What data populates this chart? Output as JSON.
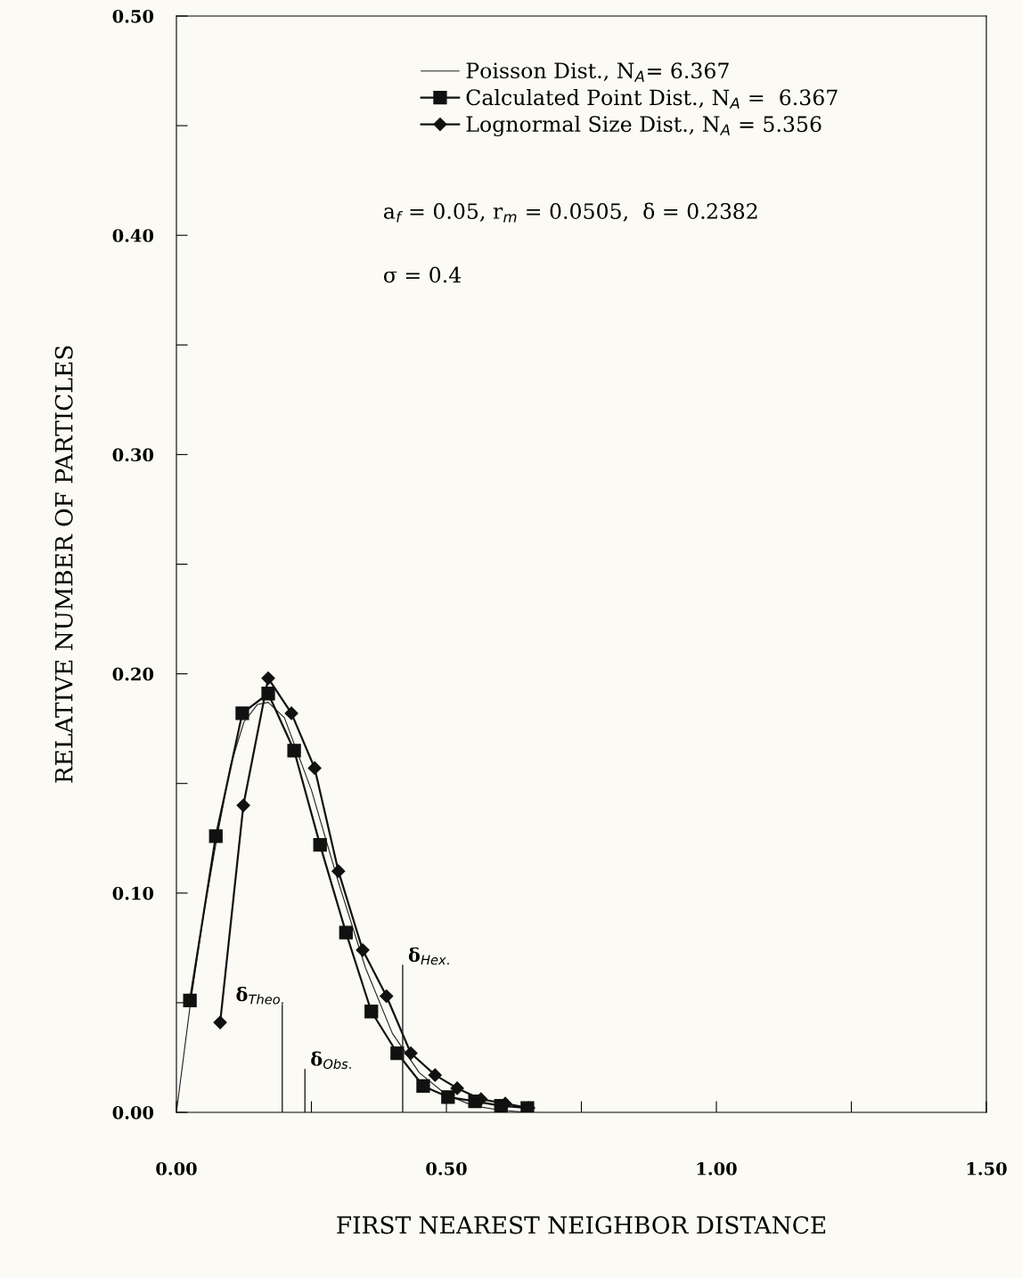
{
  "chart_data": {
    "type": "line",
    "xlabel": "FIRST NEAREST NEIGHBOR DISTANCE",
    "ylabel": "RELATIVE NUMBER OF PARTICLES",
    "series": [
      {
        "name": "Poisson Dist., N$_{A}$= 6.367",
        "color": "#222222",
        "marker": "none",
        "x": [
          0,
          0.025,
          0.05,
          0.075,
          0.1,
          0.125,
          0.15,
          0.17,
          0.2,
          0.25,
          0.3,
          0.35,
          0.4,
          0.45,
          0.5,
          0.55,
          0.6,
          0.65
        ],
        "values": [
          0,
          0.048,
          0.09,
          0.125,
          0.158,
          0.178,
          0.186,
          0.187,
          0.18,
          0.147,
          0.105,
          0.066,
          0.036,
          0.018,
          0.008,
          0.003,
          0.001,
          0.0
        ]
      },
      {
        "name": "Calculated Point Dist., N$_{A}$ =  6.367",
        "color": "#111111",
        "marker": "square",
        "x": [
          0.025,
          0.073,
          0.122,
          0.17,
          0.218,
          0.266,
          0.314,
          0.361,
          0.409,
          0.457,
          0.503,
          0.553,
          0.601,
          0.65
        ],
        "values": [
          0.051,
          0.126,
          0.182,
          0.191,
          0.165,
          0.122,
          0.082,
          0.046,
          0.027,
          0.012,
          0.007,
          0.005,
          0.003,
          0.002
        ]
      },
      {
        "name": "Lognormal Size Dist., N$_{A}$ = 5.356",
        "color": "#111111",
        "marker": "diamond",
        "x": [
          0.081,
          0.124,
          0.17,
          0.213,
          0.256,
          0.3,
          0.345,
          0.389,
          0.434,
          0.479,
          0.52,
          0.564,
          0.609,
          0.652
        ],
        "values": [
          0.041,
          0.14,
          0.198,
          0.182,
          0.157,
          0.11,
          0.074,
          0.053,
          0.027,
          0.017,
          0.011,
          0.006,
          0.004,
          0.002
        ]
      }
    ],
    "annotations": [
      "a$_{f}$ = 0.05, r$_{m}$ = 0.0505,  δ = 0.2382",
      "σ = 0.4"
    ],
    "ref_lines": [
      {
        "axis": "x",
        "value": 0.196,
        "label": "δ$_{Theo.}$"
      },
      {
        "axis": "x",
        "value": 0.238,
        "label": "δ$_{Obs.}$"
      },
      {
        "axis": "x",
        "value": 0.419,
        "label": "δ$_{Hex.}$"
      }
    ],
    "xlim": [
      0,
      1.5
    ],
    "ylim": [
      0,
      0.5
    ],
    "xticks": [
      {
        "value": 0,
        "label": "0.00"
      },
      {
        "value": 0.25,
        "label": null
      },
      {
        "value": 0.5,
        "label": "0.50"
      },
      {
        "value": 0.75,
        "label": null
      },
      {
        "value": 1.0,
        "label": "1.00"
      },
      {
        "value": 1.25,
        "label": null
      },
      {
        "value": 1.5,
        "label": "1.50"
      }
    ],
    "yticks": [
      {
        "value": 0,
        "label": "0.00"
      },
      {
        "value": 0.05,
        "label": null
      },
      {
        "value": 0.1,
        "label": "0.10"
      },
      {
        "value": 0.15,
        "label": null
      },
      {
        "value": 0.2,
        "label": "0.20"
      },
      {
        "value": 0.25,
        "label": null
      },
      {
        "value": 0.3,
        "label": "0.30"
      },
      {
        "value": 0.35,
        "label": null
      },
      {
        "value": 0.4,
        "label": "0.40"
      },
      {
        "value": 0.45,
        "label": null
      },
      {
        "value": 0.5,
        "label": "0.50"
      }
    ],
    "legend": "top",
    "grid": false
  }
}
